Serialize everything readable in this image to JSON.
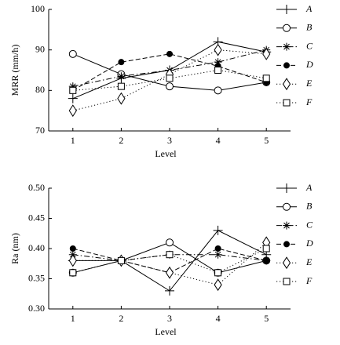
{
  "chart_data": [
    {
      "type": "line",
      "xlabel": "Level",
      "ylabel": "MRR (mm/h)",
      "x": [
        1,
        2,
        3,
        4,
        5
      ],
      "xlim": [
        0.5,
        5.5
      ],
      "xticks": [
        1,
        2,
        3,
        4,
        5
      ],
      "ylim": [
        70,
        100
      ],
      "yticks": [
        70,
        80,
        90,
        100
      ],
      "series": [
        {
          "name": "A",
          "color": "#000000",
          "marker": "plus",
          "line_style": "solid",
          "values": [
            78,
            83,
            85,
            92,
            89.5
          ]
        },
        {
          "name": "B",
          "color": "#000000",
          "marker": "circle",
          "line_style": "solid",
          "values": [
            89,
            84,
            81,
            80,
            82
          ]
        },
        {
          "name": "C",
          "color": "#000000",
          "marker": "asterisk",
          "line_style": "dashdot",
          "values": [
            81,
            83.5,
            85,
            87,
            90
          ]
        },
        {
          "name": "D",
          "color": "#000000",
          "marker": "filled-circle",
          "line_style": "dashed",
          "values": [
            80,
            87,
            89,
            86,
            82
          ]
        },
        {
          "name": "E",
          "color": "#000000",
          "marker": "diamond",
          "line_style": "dotted",
          "values": [
            75,
            78,
            84,
            90,
            89
          ]
        },
        {
          "name": "F",
          "color": "#000000",
          "marker": "square",
          "line_style": "dotted",
          "values": [
            80,
            81,
            83,
            85,
            83
          ]
        }
      ]
    },
    {
      "type": "line",
      "xlabel": "Level",
      "ylabel": "Ra (nm)",
      "x": [
        1,
        2,
        3,
        4,
        5
      ],
      "xlim": [
        0.5,
        5.5
      ],
      "xticks": [
        1,
        2,
        3,
        4,
        5
      ],
      "ylim": [
        0.3,
        0.5
      ],
      "yticks": [
        {
          "value": 0.3,
          "label": "0.30"
        },
        {
          "value": 0.35,
          "label": "0.35"
        },
        {
          "value": 0.4,
          "label": "0.40"
        },
        {
          "value": 0.45,
          "label": "0.45"
        },
        {
          "value": 0.5,
          "label": "0.50"
        }
      ],
      "series": [
        {
          "name": "A",
          "color": "#000000",
          "marker": "plus",
          "line_style": "solid",
          "values": [
            0.38,
            0.38,
            0.33,
            0.43,
            0.39
          ]
        },
        {
          "name": "B",
          "color": "#000000",
          "marker": "circle",
          "line_style": "solid",
          "values": [
            0.36,
            0.38,
            0.41,
            0.36,
            0.38
          ]
        },
        {
          "name": "C",
          "color": "#000000",
          "marker": "asterisk",
          "line_style": "dashdot",
          "values": [
            0.39,
            0.38,
            0.39,
            0.39,
            0.38
          ]
        },
        {
          "name": "D",
          "color": "#000000",
          "marker": "filled-circle",
          "line_style": "dashed",
          "values": [
            0.4,
            0.38,
            0.36,
            0.4,
            0.38
          ]
        },
        {
          "name": "E",
          "color": "#000000",
          "marker": "diamond",
          "line_style": "dotted",
          "values": [
            0.38,
            0.38,
            0.36,
            0.34,
            0.41
          ]
        },
        {
          "name": "F",
          "color": "#000000",
          "marker": "square",
          "line_style": "dotted",
          "values": [
            0.36,
            0.38,
            0.39,
            0.36,
            0.4
          ]
        }
      ]
    }
  ]
}
